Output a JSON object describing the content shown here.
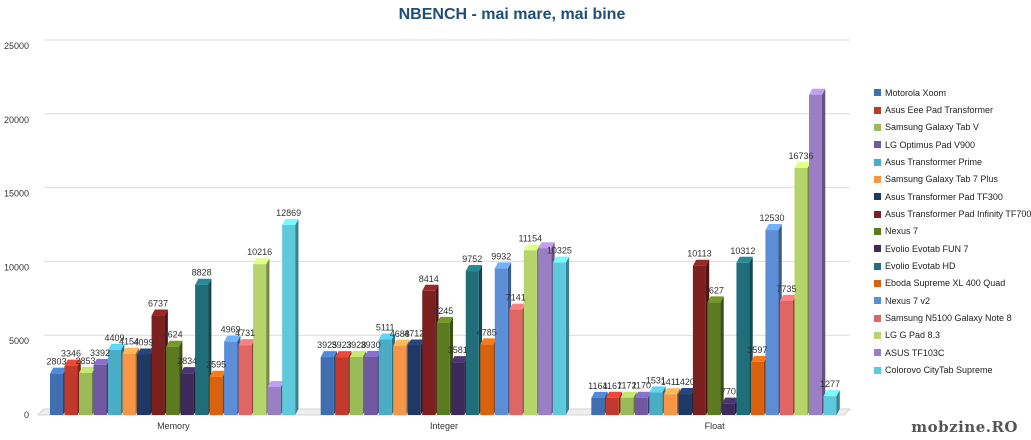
{
  "chart_data": {
    "type": "bar",
    "title": "NBENCH - mai mare, mai bine",
    "xlabel": "",
    "ylabel": "",
    "ylim": [
      0,
      25000
    ],
    "yticks": [
      0,
      5000,
      10000,
      15000,
      20000,
      25000
    ],
    "grid": true,
    "legend_position": "right",
    "categories": [
      "Memory",
      "Integer",
      "Float"
    ],
    "series": [
      {
        "name": "Motorola Xoom",
        "color": "#3f6fb0",
        "values": [
          2803,
          3925,
          1164
        ],
        "labels": [
          "2803",
          "3925",
          "1164"
        ]
      },
      {
        "name": "Asus Eee Pad Transformer",
        "color": "#c0392b",
        "values": [
          3346,
          3923,
          1167
        ],
        "labels": [
          "3346",
          "3923",
          "1167"
        ]
      },
      {
        "name": "Samsung Galaxy Tab V",
        "color": "#9bbb59",
        "values": [
          2853,
          3928,
          1172
        ],
        "labels": [
          "2853",
          "3928",
          "1172"
        ]
      },
      {
        "name": "LG Optimus Pad V900",
        "color": "#7058a3",
        "values": [
          3392,
          3930,
          1170
        ],
        "labels": [
          "3392",
          "3930",
          "1170"
        ]
      },
      {
        "name": "Asus Transformer Prime",
        "color": "#4bacc6",
        "values": [
          4409,
          5111,
          1531
        ],
        "labels": [
          "4409",
          "5111",
          "1531"
        ]
      },
      {
        "name": "Samsung Galaxy Tab 7 Plus",
        "color": "#f79646",
        "values": [
          4154,
          4688,
          1411
        ],
        "labels": [
          "4154",
          "4688",
          "1411"
        ]
      },
      {
        "name": "Asus Transformer Pad TF300",
        "color": "#1f3864",
        "values": [
          4099,
          4712,
          1420
        ],
        "labels": [
          "4099",
          "4712",
          "1420"
        ]
      },
      {
        "name": "Asus Transformer Pad Infinity TF700",
        "color": "#7b1f1f",
        "values": [
          6737,
          8414,
          10113
        ],
        "labels": [
          "6737",
          "8414",
          "10113"
        ]
      },
      {
        "name": "Nexus 7",
        "color": "#5c7a1f",
        "values": [
          4624,
          6245,
          7627
        ],
        "labels": [
          "4624",
          "6245",
          "7627"
        ]
      },
      {
        "name": "Evolio Evotab FUN 7",
        "color": "#3d2a5c",
        "values": [
          2834,
          3581,
          770
        ],
        "labels": [
          "2834",
          "3581",
          "770"
        ]
      },
      {
        "name": "Evolio Evotab HD",
        "color": "#1f6e7a",
        "values": [
          8828,
          9752,
          10312
        ],
        "labels": [
          "8828",
          "9752",
          "10312"
        ]
      },
      {
        "name": "Eboda Supreme XL 400 Quad",
        "color": "#d9620e",
        "values": [
          2595,
          4785,
          3597
        ],
        "labels": [
          "2595",
          "4785",
          "3597"
        ]
      },
      {
        "name": "Nexus 7 v2",
        "color": "#5b8ed6",
        "values": [
          4969,
          9932,
          12530
        ],
        "labels": [
          "4969",
          "9932",
          "12530"
        ]
      },
      {
        "name": "Samsung N5100 Galaxy Note 8",
        "color": "#e06666",
        "values": [
          4731,
          7141,
          7735
        ],
        "labels": [
          "4731",
          "7141",
          "7735"
        ]
      },
      {
        "name": "LG G Pad 8.3",
        "color": "#b5d46b",
        "values": [
          10216,
          11154,
          16736
        ],
        "labels": [
          "10216",
          "11154",
          "16736"
        ]
      },
      {
        "name": "ASUS TF103C",
        "color": "#9a7fc4",
        "values": [
          1900,
          11300,
          21700
        ],
        "labels": [
          "",
          "",
          ""
        ]
      },
      {
        "name": "Colorovo CityTab Supreme",
        "color": "#5ec8dd",
        "values": [
          12869,
          10325,
          1277
        ],
        "labels": [
          "12869",
          "10325",
          "1277"
        ]
      }
    ]
  },
  "watermark": "mobzine.RO"
}
